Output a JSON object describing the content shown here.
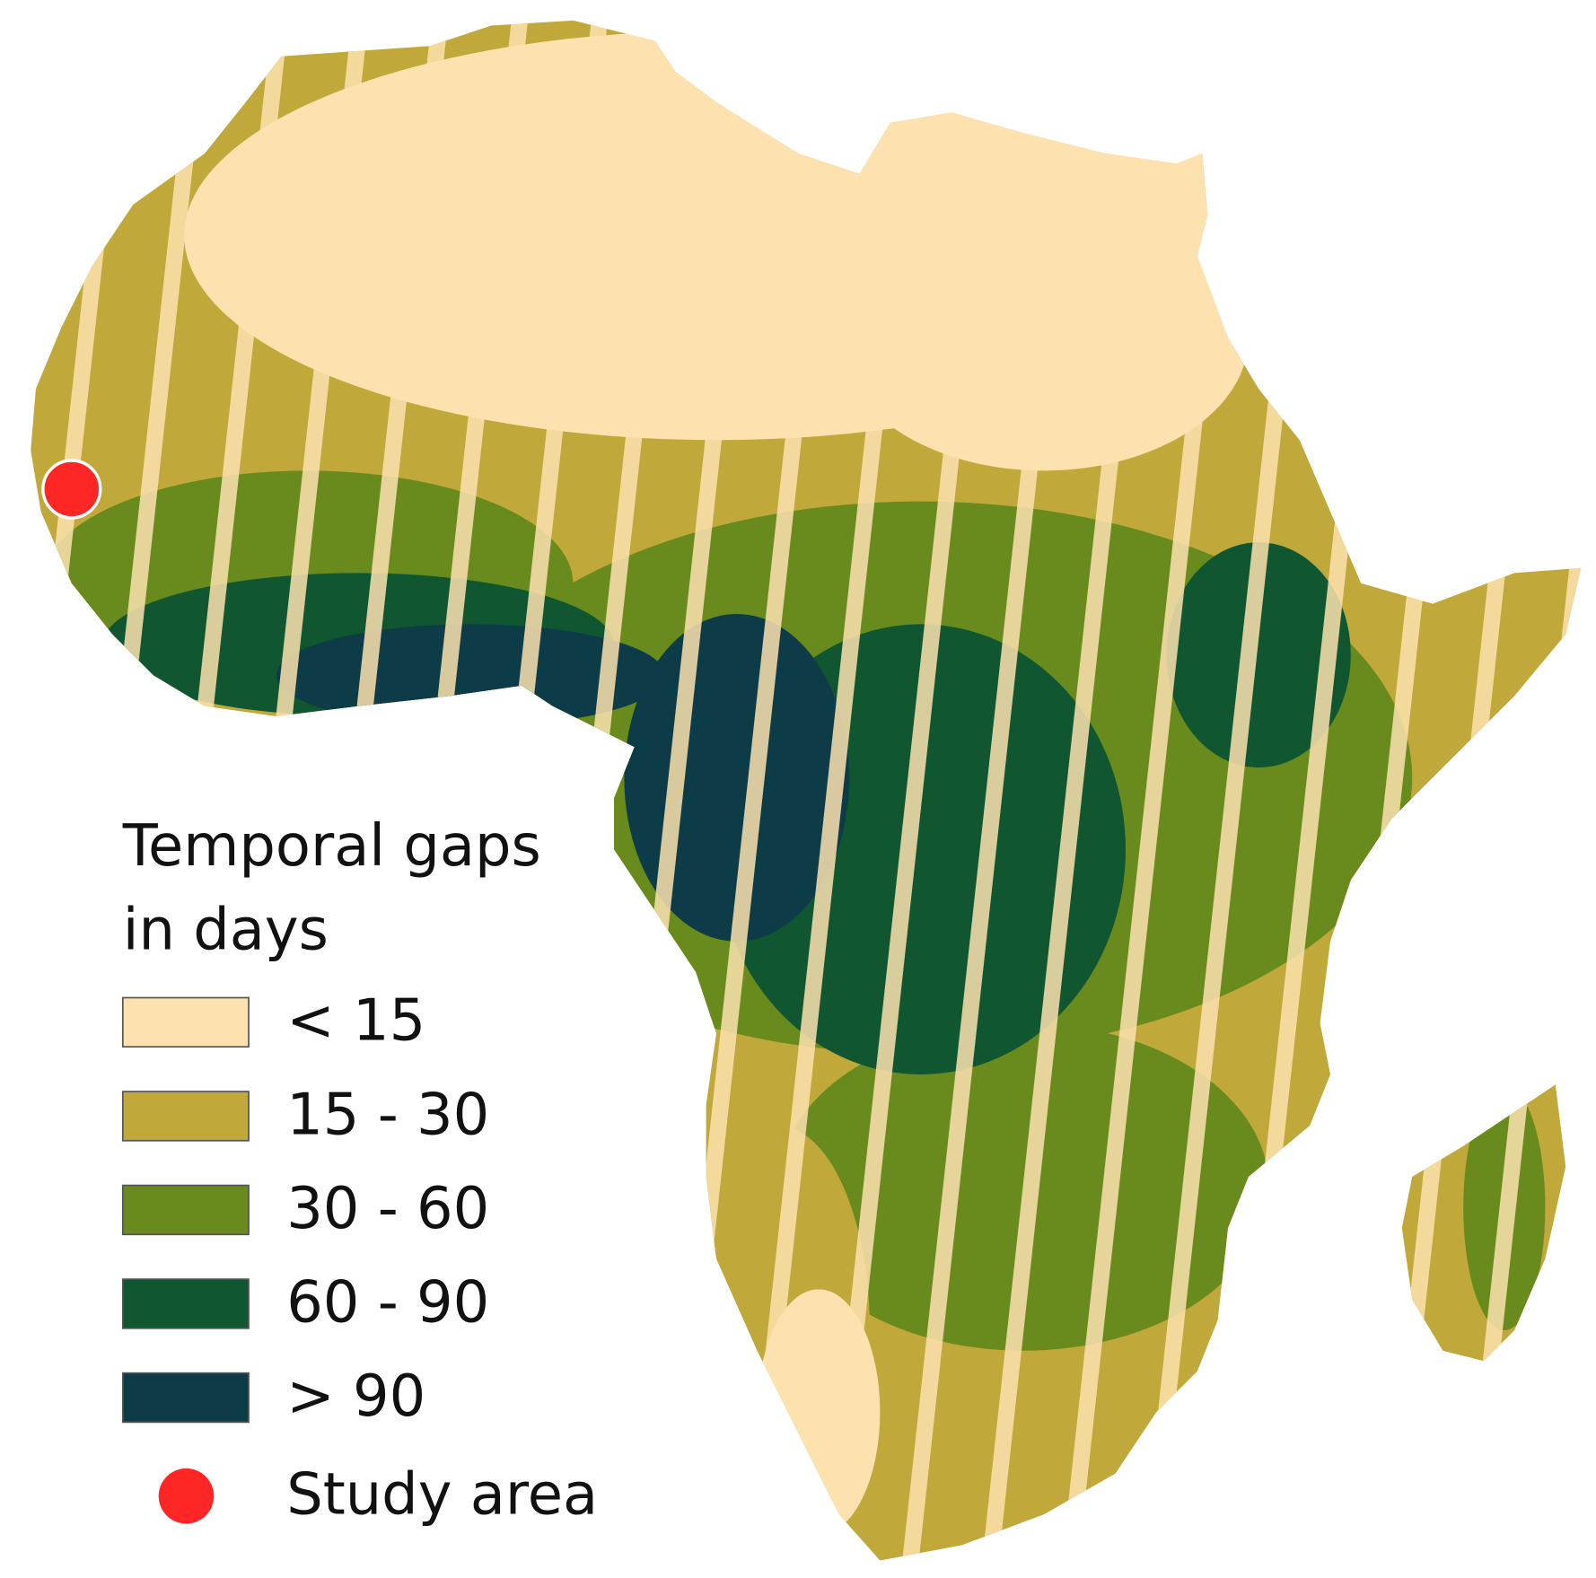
{
  "legend": {
    "title": "Temporal gaps",
    "subtitle": "in days",
    "items": [
      {
        "label": "< 15",
        "color": "#fde2b0"
      },
      {
        "label": "15 - 30",
        "color": "#c1a83a"
      },
      {
        "label": "30 - 60",
        "color": "#698a1c"
      },
      {
        "label": "60 - 90",
        "color": "#105630"
      },
      {
        "label": "> 90",
        "color": "#0d3c48"
      }
    ],
    "study_area": {
      "label": "Study area",
      "color": "#ff2626"
    }
  }
}
